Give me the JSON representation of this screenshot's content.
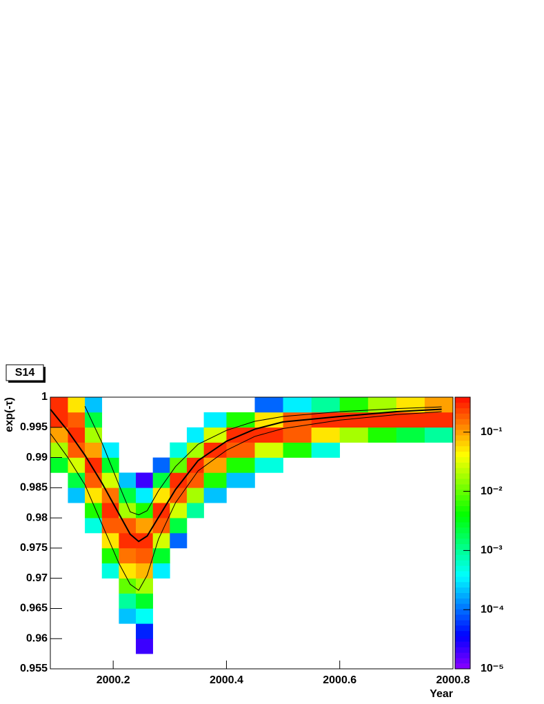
{
  "chart_data": {
    "type": "heatmap",
    "title": "S14",
    "x_label": "Year",
    "y_label": "exp(-τ)",
    "xlim": [
      2000.089,
      2000.8
    ],
    "ylim": [
      0.955,
      1
    ],
    "xticks": [
      2000.2,
      2000.4,
      2000.6,
      2000.8
    ],
    "yticks": [
      0.955,
      0.96,
      0.965,
      0.97,
      0.975,
      0.98,
      0.985,
      0.99,
      0.995,
      1
    ],
    "palette": "rainbow",
    "zlog": true,
    "zlim": [
      1e-05,
      0.39
    ],
    "zticks": [
      {
        "value": 1e-05,
        "label": "10⁻⁵"
      },
      {
        "value": 0.0001,
        "label": "10⁻⁴"
      },
      {
        "value": 0.001,
        "label": "10⁻³"
      },
      {
        "value": 0.01,
        "label": "10⁻²"
      },
      {
        "value": 0.1,
        "label": "10⁻¹"
      }
    ],
    "heatmap": {
      "xbins": [
        2000.089,
        2000.12,
        2000.15,
        2000.18,
        2000.21,
        2000.24,
        2000.27,
        2000.3,
        2000.33,
        2000.36,
        2000.4,
        2000.45,
        2000.5,
        2000.55,
        2000.6,
        2000.65,
        2000.7,
        2000.75,
        2000.8
      ],
      "ybins": [
        0.955,
        0.9575,
        0.96,
        0.9625,
        0.965,
        0.9675,
        0.97,
        0.9725,
        0.975,
        0.9775,
        0.98,
        0.9825,
        0.985,
        0.9875,
        0.99,
        0.9925,
        0.995,
        0.9975,
        1
      ],
      "z": [
        [
          null,
          null,
          null,
          null,
          null,
          null,
          null,
          null,
          null,
          null,
          null,
          null,
          null,
          null,
          null,
          null,
          null,
          null
        ],
        [
          null,
          null,
          null,
          null,
          null,
          2e-05,
          null,
          null,
          null,
          null,
          null,
          null,
          null,
          null,
          null,
          null,
          null,
          null
        ],
        [
          null,
          null,
          null,
          null,
          null,
          5e-05,
          null,
          null,
          null,
          null,
          null,
          null,
          null,
          null,
          null,
          null,
          null,
          null
        ],
        [
          null,
          null,
          null,
          null,
          0.0002,
          0.0004,
          null,
          null,
          null,
          null,
          null,
          null,
          null,
          null,
          null,
          null,
          null,
          null
        ],
        [
          null,
          null,
          null,
          null,
          0.001,
          0.003,
          null,
          null,
          null,
          null,
          null,
          null,
          null,
          null,
          null,
          null,
          null,
          null
        ],
        [
          null,
          null,
          null,
          null,
          0.01,
          0.02,
          null,
          null,
          null,
          null,
          null,
          null,
          null,
          null,
          null,
          null,
          null,
          null
        ],
        [
          null,
          null,
          null,
          0.0005,
          0.05,
          0.08,
          0.0003,
          null,
          null,
          null,
          null,
          null,
          null,
          null,
          null,
          null,
          null,
          null
        ],
        [
          null,
          null,
          null,
          0.005,
          0.15,
          0.2,
          0.003,
          null,
          null,
          null,
          null,
          null,
          null,
          null,
          null,
          null,
          null,
          null
        ],
        [
          null,
          null,
          null,
          0.05,
          0.3,
          0.3,
          0.03,
          0.0001,
          null,
          null,
          null,
          null,
          null,
          null,
          null,
          null,
          null,
          null
        ],
        [
          null,
          null,
          0.0005,
          0.2,
          0.2,
          0.1,
          0.2,
          0.002,
          null,
          null,
          null,
          null,
          null,
          null,
          null,
          null,
          null,
          null
        ],
        [
          null,
          null,
          0.005,
          0.3,
          0.02,
          0.005,
          0.3,
          0.03,
          0.001,
          null,
          null,
          null,
          null,
          null,
          null,
          null,
          null,
          null
        ],
        [
          null,
          0.0002,
          0.05,
          0.15,
          0.002,
          0.0003,
          0.05,
          0.2,
          0.02,
          0.0002,
          null,
          null,
          null,
          null,
          null,
          null,
          null,
          null
        ],
        [
          null,
          0.002,
          0.2,
          0.03,
          0.0002,
          2e-05,
          0.002,
          0.3,
          0.2,
          0.005,
          0.0002,
          null,
          null,
          null,
          null,
          null,
          null,
          null
        ],
        [
          0.003,
          0.03,
          0.3,
          0.003,
          null,
          null,
          0.0001,
          0.01,
          0.3,
          0.1,
          0.005,
          0.0005,
          null,
          null,
          null,
          null,
          null,
          null
        ],
        [
          0.02,
          0.2,
          0.1,
          0.0003,
          null,
          null,
          null,
          0.0005,
          0.02,
          0.3,
          0.2,
          0.03,
          0.005,
          0.0005,
          null,
          null,
          null,
          null
        ],
        [
          0.1,
          0.3,
          0.02,
          null,
          null,
          null,
          null,
          null,
          0.0003,
          0.03,
          0.3,
          0.3,
          0.2,
          0.05,
          0.02,
          0.005,
          0.002,
          0.001
        ],
        [
          0.3,
          0.2,
          0.002,
          null,
          null,
          null,
          null,
          null,
          null,
          0.0003,
          0.005,
          0.05,
          0.2,
          0.3,
          0.3,
          0.3,
          0.3,
          0.3
        ],
        [
          0.3,
          0.05,
          0.0002,
          null,
          null,
          null,
          null,
          null,
          null,
          null,
          null,
          0.0001,
          0.0003,
          0.001,
          0.005,
          0.02,
          0.05,
          0.1
        ]
      ]
    },
    "x": [
      2000.089,
      2000.12,
      2000.15,
      2000.18,
      2000.21,
      2000.23,
      2000.245,
      2000.26,
      2000.28,
      2000.31,
      2000.35,
      2000.4,
      2000.45,
      2000.5,
      2000.6,
      2000.7,
      2000.78
    ],
    "series": [
      {
        "color": "#000000",
        "width": 1,
        "values": [
          null,
          null,
          0.9985,
          0.9925,
          0.9855,
          0.981,
          0.9805,
          0.9812,
          0.9845,
          0.9885,
          0.9922,
          0.9945,
          0.996,
          0.9968,
          0.9976,
          0.9981,
          0.9984
        ]
      },
      {
        "color": "#000000",
        "width": 2,
        "values": [
          0.998,
          0.9944,
          0.9904,
          0.9858,
          0.9807,
          0.9773,
          0.9761,
          0.977,
          0.9801,
          0.9847,
          0.9895,
          0.9927,
          0.9947,
          0.9959,
          0.9968,
          0.9976,
          0.998
        ]
      },
      {
        "color": "#000000",
        "width": 1,
        "values": [
          0.994,
          0.99,
          0.9855,
          0.979,
          0.9725,
          0.969,
          0.968,
          0.9705,
          0.9765,
          0.9825,
          0.9878,
          0.9912,
          0.9935,
          0.9948,
          0.9962,
          0.9971,
          0.9976
        ]
      }
    ]
  }
}
